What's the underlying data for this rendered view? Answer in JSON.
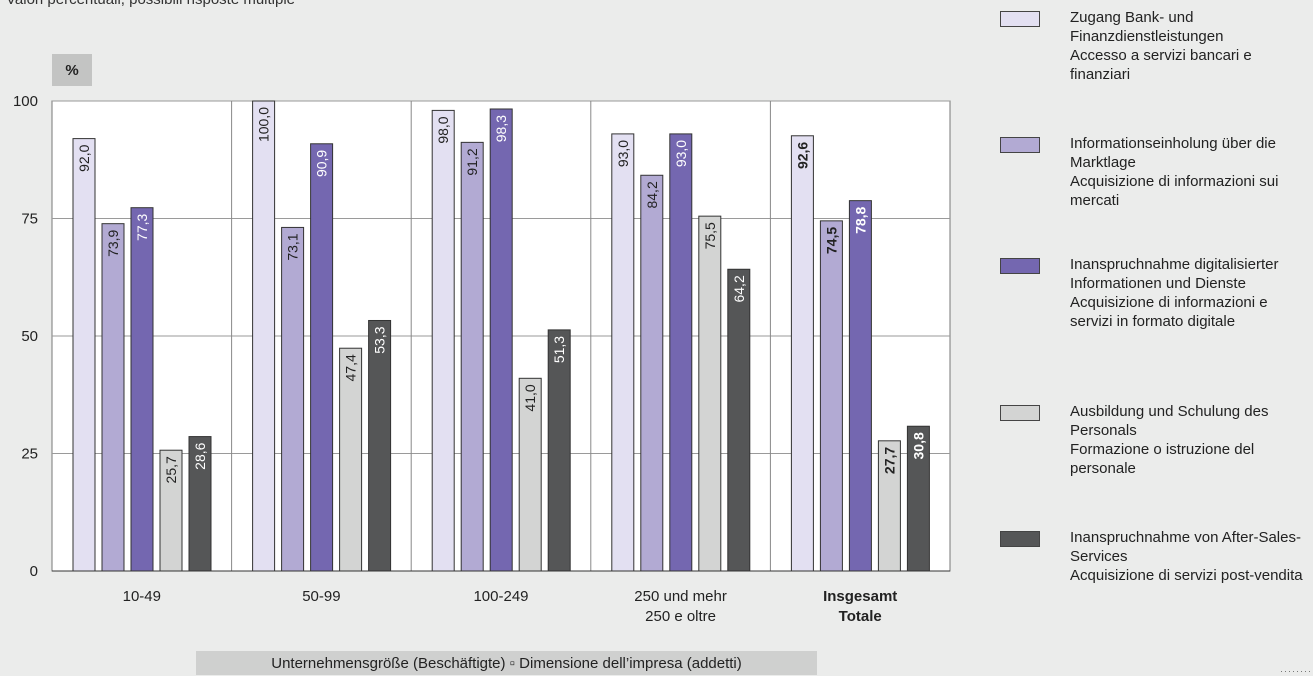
{
  "subtitle": "Valori percentuali, possibili risposte multiple",
  "unit_label": "%",
  "x_axis_title": "Unternehmensgröße (Beschäftigte) ▫ Dimensione dell’impresa (addetti)",
  "colors": {
    "series": [
      "#e3e0f2",
      "#b2aad3",
      "#7467b0",
      "#d3d4d3",
      "#555657"
    ],
    "plot_bg": "#ffffff",
    "gridline": "#9a9a9a"
  },
  "legend": [
    {
      "de": "Zugang Bank- und Finanzdienstleistungen",
      "it": "Accesso a servizi bancari e finanziari"
    },
    {
      "de": "Informationseinholung über die Marktlage",
      "it": "Acquisizione di informazioni sui mercati"
    },
    {
      "de": "Inanspruchnahme digitalisierter Informationen und Dienste",
      "it": "Acquisizione di informazioni e servizi in formato digitale"
    },
    {
      "de": "Ausbildung und Schulung des Personals",
      "it": "Formazione o istruzione del personale"
    },
    {
      "de": "Inanspruchnahme von After-Sales-Services",
      "it": "Acquisizione di servizi post-vendita"
    }
  ],
  "chart_data": {
    "type": "bar",
    "ylim": [
      0,
      100
    ],
    "yticks": [
      0,
      25,
      50,
      75,
      100
    ],
    "grid": true,
    "legend_position": "right",
    "categories": [
      {
        "lines": [
          "10-49"
        ],
        "bold": false
      },
      {
        "lines": [
          "50-99"
        ],
        "bold": false
      },
      {
        "lines": [
          "100-249"
        ],
        "bold": false
      },
      {
        "lines": [
          "250 und mehr",
          "250 e oltre"
        ],
        "bold": false
      },
      {
        "lines": [
          "Insgesamt",
          "Totale"
        ],
        "bold": true
      }
    ],
    "series": [
      {
        "name": "Zugang Bank- und Finanzdienstleistungen / Accesso a servizi bancari e finanziari",
        "values": [
          92.0,
          100.0,
          98.0,
          93.0,
          92.6
        ],
        "labels": [
          "92,0",
          "100,0",
          "98,0",
          "93,0",
          "92,6"
        ]
      },
      {
        "name": "Informationseinholung über die Marktlage / Acquisizione di informazioni sui mercati",
        "values": [
          73.9,
          73.1,
          91.2,
          84.2,
          74.5
        ],
        "labels": [
          "73,9",
          "73,1",
          "91,2",
          "84,2",
          "74,5"
        ]
      },
      {
        "name": "Inanspruchnahme digitalisierter Informationen und Dienste / Acquisizione di informazioni e servizi in formato digitale",
        "values": [
          77.3,
          90.9,
          98.3,
          93.0,
          78.8
        ],
        "labels": [
          "77,3",
          "90,9",
          "98,3",
          "93,0",
          "78,8"
        ]
      },
      {
        "name": "Ausbildung und Schulung des Personals / Formazione o istruzione del personale",
        "values": [
          25.7,
          47.4,
          41.0,
          75.5,
          27.7
        ],
        "labels": [
          "25,7",
          "47,4",
          "41,0",
          "75,5",
          "27,7"
        ]
      },
      {
        "name": "Inanspruchnahme von After-Sales-Services / Acquisizione di servizi post-vendita",
        "values": [
          28.6,
          53.3,
          51.3,
          64.2,
          30.8
        ],
        "labels": [
          "28,6",
          "53,3",
          "51,3",
          "64,2",
          "30,8"
        ]
      }
    ]
  }
}
